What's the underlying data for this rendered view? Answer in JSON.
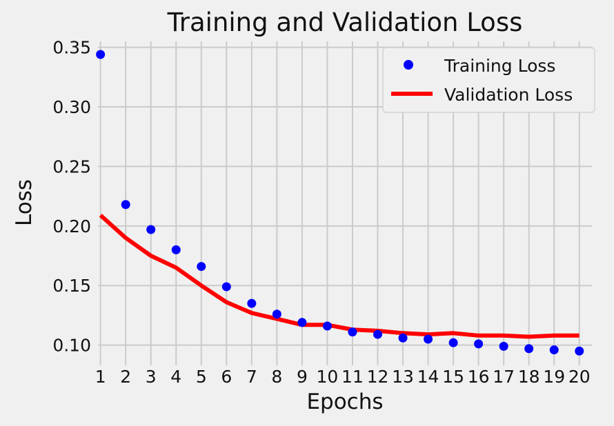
{
  "chart_data": {
    "type": "line",
    "title": "Training and Validation Loss",
    "xlabel": "Epochs",
    "ylabel": "Loss",
    "x": [
      1,
      2,
      3,
      4,
      5,
      6,
      7,
      8,
      9,
      10,
      11,
      12,
      13,
      14,
      15,
      16,
      17,
      18,
      19,
      20
    ],
    "xlim": [
      0.9,
      20.5
    ],
    "ylim": [
      0.083,
      0.355
    ],
    "yticks": [
      "0.10",
      "0.15",
      "0.20",
      "0.25",
      "0.30",
      "0.35"
    ],
    "ytick_values": [
      0.1,
      0.15,
      0.2,
      0.25,
      0.3,
      0.35
    ],
    "grid": true,
    "legend_position": "top-right",
    "series": [
      {
        "name": "Training Loss",
        "style": "markers",
        "color": "#0000ff",
        "values": [
          0.344,
          0.218,
          0.197,
          0.18,
          0.166,
          0.149,
          0.135,
          0.126,
          0.119,
          0.116,
          0.111,
          0.109,
          0.106,
          0.105,
          0.102,
          0.101,
          0.099,
          0.097,
          0.096,
          0.095
        ]
      },
      {
        "name": "Validation Loss",
        "style": "line",
        "color": "#ff0000",
        "values": [
          0.209,
          0.19,
          0.175,
          0.165,
          0.15,
          0.136,
          0.127,
          0.122,
          0.117,
          0.117,
          0.113,
          0.112,
          0.11,
          0.109,
          0.11,
          0.108,
          0.108,
          0.107,
          0.108,
          0.108
        ]
      }
    ]
  }
}
